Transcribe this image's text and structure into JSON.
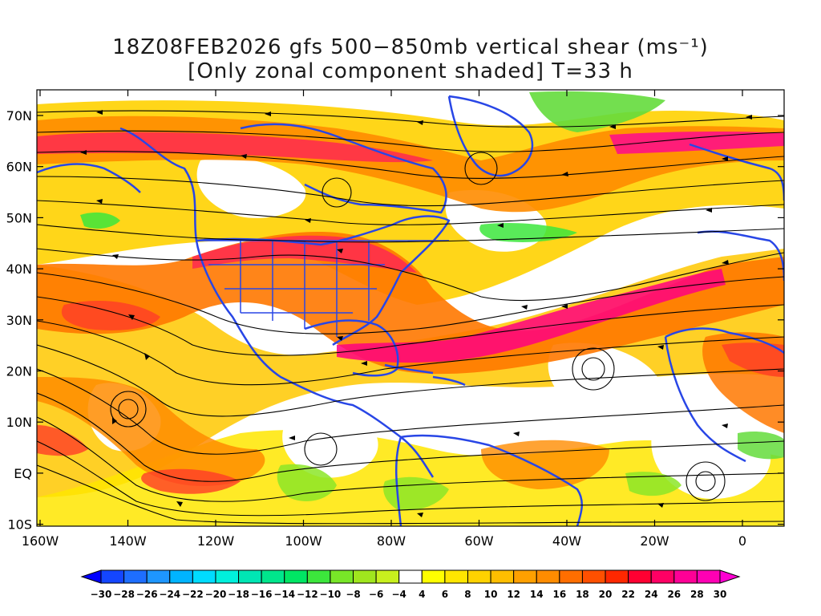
{
  "title": {
    "line1": "18Z08FEB2026 gfs 500−850mb vertical shear (ms⁻¹)",
    "line2": "[Only zonal component shaded] T=33 h"
  },
  "axes": {
    "lat_labels": [
      "70N",
      "60N",
      "50N",
      "40N",
      "30N",
      "20N",
      "10N",
      "EQ",
      "10S"
    ],
    "lon_labels": [
      "160W",
      "140W",
      "120W",
      "100W",
      "80W",
      "60W",
      "40W",
      "20W",
      "0"
    ]
  },
  "colorbar": {
    "labels": [
      "-30",
      "-28",
      "-26",
      "-24",
      "-22",
      "-20",
      "-18",
      "-16",
      "-14",
      "-12",
      "-10",
      "-8",
      "-6",
      "-4",
      "4",
      "6",
      "8",
      "10",
      "12",
      "14",
      "16",
      "18",
      "20",
      "22",
      "24",
      "26",
      "28",
      "30"
    ],
    "colors": [
      "#0000ff",
      "#1446ff",
      "#1e6eff",
      "#1e96ff",
      "#00b4ff",
      "#00dcff",
      "#00f0dc",
      "#00e6b4",
      "#00e68c",
      "#00e664",
      "#3ce63c",
      "#78e628",
      "#a0e61e",
      "#c8f01e",
      "#ffffff",
      "#ffff00",
      "#ffe600",
      "#ffd200",
      "#ffbe00",
      "#ffa000",
      "#ff8c00",
      "#ff6e00",
      "#ff5000",
      "#ff2800",
      "#ff0032",
      "#ff0064",
      "#ff0096",
      "#ff00b4",
      "#ff00d2"
    ]
  },
  "colors": {
    "coast": "#2846e6",
    "streamline": "#000000"
  }
}
